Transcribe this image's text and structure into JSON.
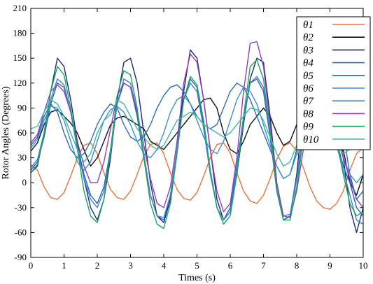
{
  "chart_data": {
    "type": "line",
    "title": "",
    "xlabel": "Times (s)",
    "ylabel": "Rotor Angles (Degrees)",
    "xlim": [
      0,
      10
    ],
    "ylim": [
      -90,
      210
    ],
    "x_ticks": [
      "0",
      "1",
      "2",
      "3",
      "4",
      "5",
      "6",
      "7",
      "8",
      "9",
      "10"
    ],
    "y_ticks": [
      "-90",
      "-60",
      "-30",
      "0",
      "30",
      "60",
      "90",
      "120",
      "150",
      "180",
      "210"
    ],
    "grid": false,
    "legend_position": "top-right",
    "series": [
      {
        "name": "θ1",
        "color": "#e8733a",
        "x": [
          0,
          0.2,
          0.4,
          0.6,
          0.8,
          1.0,
          1.2,
          1.4,
          1.6,
          1.8,
          2.0,
          2.2,
          2.4,
          2.6,
          2.8,
          3.0,
          3.2,
          3.4,
          3.6,
          3.8,
          4.0,
          4.2,
          4.4,
          4.6,
          4.8,
          5.0,
          5.2,
          5.4,
          5.6,
          5.8,
          6.0,
          6.2,
          6.4,
          6.6,
          6.8,
          7.0,
          7.2,
          7.4,
          7.6,
          7.8,
          8.0,
          8.2,
          8.4,
          8.6,
          8.8,
          9.0,
          9.2,
          9.4,
          9.6,
          9.8,
          10.0
        ],
        "y": [
          22,
          15,
          -5,
          -18,
          -20,
          -12,
          8,
          30,
          45,
          48,
          35,
          12,
          -8,
          -18,
          -20,
          -10,
          10,
          32,
          46,
          48,
          35,
          12,
          -8,
          -19,
          -21,
          -12,
          8,
          30,
          46,
          48,
          36,
          12,
          -10,
          -22,
          -25,
          -15,
          5,
          28,
          44,
          48,
          38,
          18,
          -5,
          -22,
          -30,
          -32,
          -25,
          -10,
          15,
          35,
          42
        ]
      },
      {
        "name": "θ2",
        "color": "#111111",
        "x": [
          0,
          0.2,
          0.4,
          0.6,
          0.8,
          1.0,
          1.2,
          1.4,
          1.6,
          1.8,
          2.0,
          2.2,
          2.4,
          2.6,
          2.8,
          3.0,
          3.2,
          3.4,
          3.6,
          3.8,
          4.0,
          4.2,
          4.4,
          4.6,
          4.8,
          5.0,
          5.2,
          5.4,
          5.6,
          5.8,
          6.0,
          6.2,
          6.4,
          6.6,
          6.8,
          7.0,
          7.2,
          7.4,
          7.6,
          7.8,
          8.0,
          8.2,
          8.4,
          8.6,
          8.8,
          9.0,
          9.2,
          9.4,
          9.6,
          9.8,
          10.0
        ],
        "y": [
          38,
          48,
          70,
          85,
          88,
          80,
          72,
          60,
          40,
          20,
          30,
          50,
          70,
          78,
          80,
          75,
          70,
          65,
          50,
          45,
          40,
          50,
          60,
          70,
          80,
          90,
          100,
          102,
          90,
          60,
          40,
          35,
          50,
          70,
          80,
          90,
          80,
          60,
          45,
          50,
          70,
          50,
          90,
          100,
          110,
          95,
          70,
          40,
          0,
          -15,
          10
        ]
      },
      {
        "name": "θ3",
        "color": "#1c2a7a",
        "x": [
          0,
          0.2,
          0.4,
          0.6,
          0.8,
          1.0,
          1.2,
          1.4,
          1.6,
          1.8,
          2.0,
          2.2,
          2.4,
          2.6,
          2.8,
          3.0,
          3.2,
          3.4,
          3.6,
          3.8,
          4.0,
          4.2,
          4.4,
          4.6,
          4.8,
          5.0,
          5.2,
          5.4,
          5.6,
          5.8,
          6.0,
          6.2,
          6.4,
          6.6,
          6.8,
          7.0,
          7.2,
          7.4,
          7.6,
          7.8,
          8.0,
          8.2,
          8.4,
          8.6,
          8.8,
          9.0,
          9.2,
          9.4,
          9.6,
          9.8,
          10.0
        ],
        "y": [
          12,
          20,
          60,
          110,
          150,
          140,
          100,
          50,
          5,
          -30,
          -45,
          -20,
          30,
          100,
          145,
          150,
          120,
          60,
          0,
          -40,
          -48,
          -20,
          40,
          110,
          160,
          150,
          100,
          40,
          -20,
          -45,
          -35,
          10,
          70,
          125,
          150,
          145,
          80,
          0,
          -45,
          -40,
          10,
          90,
          170,
          190,
          192,
          160,
          100,
          30,
          -30,
          -60,
          -30
        ]
      },
      {
        "name": "θ4",
        "color": "#2a6db5",
        "x": [
          0,
          0.2,
          0.4,
          0.6,
          0.8,
          1.0,
          1.2,
          1.4,
          1.6,
          1.8,
          2.0,
          2.2,
          2.4,
          2.6,
          2.8,
          3.0,
          3.2,
          3.4,
          3.6,
          3.8,
          4.0,
          4.2,
          4.4,
          4.6,
          4.8,
          5.0,
          5.2,
          5.4,
          5.6,
          5.8,
          6.0,
          6.2,
          6.4,
          6.6,
          6.8,
          7.0,
          7.2,
          7.4,
          7.6,
          7.8,
          8.0,
          8.2,
          8.4,
          8.6,
          8.8,
          9.0,
          9.2,
          9.4,
          9.6,
          9.8,
          10.0
        ],
        "y": [
          45,
          55,
          80,
          95,
          85,
          60,
          40,
          30,
          35,
          50,
          70,
          85,
          95,
          90,
          70,
          55,
          50,
          55,
          70,
          90,
          105,
          115,
          118,
          110,
          95,
          80,
          70,
          65,
          70,
          90,
          110,
          120,
          115,
          100,
          80,
          60,
          40,
          20,
          5,
          10,
          40,
          80,
          120,
          150,
          170,
          160,
          120,
          60,
          10,
          -20,
          -10
        ]
      },
      {
        "name": "θ5",
        "color": "#1f63c0",
        "x": [
          0,
          0.2,
          0.4,
          0.6,
          0.8,
          1.0,
          1.2,
          1.4,
          1.6,
          1.8,
          2.0,
          2.2,
          2.4,
          2.6,
          2.8,
          3.0,
          3.2,
          3.4,
          3.6,
          3.8,
          4.0,
          4.2,
          4.4,
          4.6,
          4.8,
          5.0,
          5.2,
          5.4,
          5.6,
          5.8,
          6.0,
          6.2,
          6.4,
          6.6,
          6.8,
          7.0,
          7.2,
          7.4,
          7.6,
          7.8,
          8.0,
          8.2,
          8.4,
          8.6,
          8.8,
          9.0,
          9.2,
          9.4,
          9.6,
          9.8,
          10.0
        ],
        "y": [
          15,
          25,
          55,
          95,
          120,
          115,
          85,
          45,
          10,
          -15,
          -25,
          -5,
          40,
          95,
          120,
          115,
          80,
          30,
          -15,
          -40,
          -45,
          -15,
          40,
          100,
          125,
          115,
          70,
          15,
          -30,
          -45,
          -30,
          20,
          80,
          120,
          125,
          110,
          55,
          -10,
          -45,
          -40,
          5,
          60,
          110,
          120,
          105,
          80,
          50,
          20,
          0,
          -30,
          -40
        ]
      },
      {
        "name": "θ6",
        "color": "#3a8fd8",
        "x": [
          0,
          0.2,
          0.4,
          0.6,
          0.8,
          1.0,
          1.2,
          1.4,
          1.6,
          1.8,
          2.0,
          2.2,
          2.4,
          2.6,
          2.8,
          3.0,
          3.2,
          3.4,
          3.6,
          3.8,
          4.0,
          4.2,
          4.4,
          4.6,
          4.8,
          5.0,
          5.2,
          5.4,
          5.6,
          5.8,
          6.0,
          6.2,
          6.4,
          6.6,
          6.8,
          7.0,
          7.2,
          7.4,
          7.6,
          7.8,
          8.0,
          8.2,
          8.4,
          8.6,
          8.8,
          9.0,
          9.2,
          9.4,
          9.6,
          9.8,
          10.0
        ],
        "y": [
          42,
          52,
          75,
          92,
          90,
          75,
          50,
          25,
          15,
          25,
          50,
          75,
          88,
          92,
          85,
          70,
          50,
          35,
          30,
          40,
          60,
          85,
          100,
          105,
          95,
          75,
          55,
          40,
          35,
          50,
          75,
          100,
          115,
          110,
          95,
          70,
          45,
          20,
          5,
          10,
          35,
          70,
          100,
          115,
          110,
          90,
          60,
          30,
          10,
          0,
          10
        ]
      },
      {
        "name": "θ7",
        "color": "#4a7fd0",
        "x": [
          0,
          0.2,
          0.4,
          0.6,
          0.8,
          1.0,
          1.2,
          1.4,
          1.6,
          1.8,
          2.0,
          2.2,
          2.4,
          2.6,
          2.8,
          3.0,
          3.2,
          3.4,
          3.6,
          3.8,
          4.0,
          4.2,
          4.4,
          4.6,
          4.8,
          5.0,
          5.2,
          5.4,
          5.6,
          5.8,
          6.0,
          6.2,
          6.4,
          6.6,
          6.8,
          7.0,
          7.2,
          7.4,
          7.6,
          7.8,
          8.0,
          8.2,
          8.4,
          8.6,
          8.8,
          9.0,
          9.2,
          9.4,
          9.6,
          9.8,
          10.0
        ],
        "y": [
          18,
          28,
          60,
          100,
          125,
          118,
          85,
          40,
          5,
          -20,
          -30,
          -10,
          35,
          95,
          125,
          120,
          85,
          35,
          -15,
          -40,
          -42,
          -15,
          40,
          100,
          120,
          110,
          65,
          10,
          -30,
          -45,
          -35,
          15,
          75,
          120,
          128,
          115,
          60,
          -5,
          -40,
          -38,
          5,
          55,
          95,
          110,
          100,
          75,
          45,
          15,
          -15,
          -45,
          -50
        ]
      },
      {
        "name": "θ8",
        "color": "#8e3fbf",
        "x": [
          0,
          0.2,
          0.4,
          0.6,
          0.8,
          1.0,
          1.2,
          1.4,
          1.6,
          1.8,
          2.0,
          2.2,
          2.4,
          2.6,
          2.8,
          3.0,
          3.2,
          3.4,
          3.6,
          3.8,
          4.0,
          4.2,
          4.4,
          4.6,
          4.8,
          5.0,
          5.2,
          5.4,
          5.6,
          5.8,
          6.0,
          6.2,
          6.4,
          6.6,
          6.8,
          7.0,
          7.2,
          7.4,
          7.6,
          7.8,
          8.0,
          8.2,
          8.4,
          8.6,
          8.8,
          9.0,
          9.2,
          9.4,
          9.6,
          9.8,
          10.0
        ],
        "y": [
          48,
          58,
          85,
          110,
          118,
          110,
          85,
          50,
          20,
          0,
          0,
          25,
          65,
          105,
          120,
          115,
          85,
          45,
          5,
          -25,
          -30,
          -5,
          50,
          120,
          155,
          145,
          100,
          40,
          -10,
          -35,
          -25,
          30,
          110,
          168,
          170,
          140,
          70,
          0,
          -40,
          -42,
          -10,
          40,
          80,
          100,
          95,
          80,
          55,
          30,
          5,
          -20,
          -30
        ]
      },
      {
        "name": "θ9",
        "color": "#18a85a",
        "x": [
          0,
          0.2,
          0.4,
          0.6,
          0.8,
          1.0,
          1.2,
          1.4,
          1.6,
          1.8,
          2.0,
          2.2,
          2.4,
          2.6,
          2.8,
          3.0,
          3.2,
          3.4,
          3.6,
          3.8,
          4.0,
          4.2,
          4.4,
          4.6,
          4.8,
          5.0,
          5.2,
          5.4,
          5.6,
          5.8,
          6.0,
          6.2,
          6.4,
          6.6,
          6.8,
          7.0,
          7.2,
          7.4,
          7.6,
          7.8,
          8.0,
          8.2,
          8.4,
          8.6,
          8.8,
          9.0,
          9.2,
          9.4,
          9.6,
          9.8,
          10.0
        ],
        "y": [
          12,
          22,
          60,
          110,
          140,
          130,
          90,
          40,
          -10,
          -40,
          -48,
          -20,
          40,
          105,
          135,
          130,
          90,
          30,
          -25,
          -50,
          -55,
          -25,
          35,
          100,
          128,
          118,
          75,
          15,
          -30,
          -50,
          -40,
          10,
          80,
          140,
          148,
          125,
          60,
          -10,
          -45,
          -45,
          -5,
          55,
          105,
          120,
          110,
          85,
          50,
          10,
          -25,
          -40,
          -35
        ]
      },
      {
        "name": "θ10",
        "color": "#40b8a0",
        "x": [
          0,
          0.2,
          0.4,
          0.6,
          0.8,
          1.0,
          1.2,
          1.4,
          1.6,
          1.8,
          2.0,
          2.2,
          2.4,
          2.6,
          2.8,
          3.0,
          3.2,
          3.4,
          3.6,
          3.8,
          4.0,
          4.2,
          4.4,
          4.6,
          4.8,
          5.0,
          5.2,
          5.4,
          5.6,
          5.8,
          6.0,
          6.2,
          6.4,
          6.6,
          6.8,
          7.0,
          7.2,
          7.4,
          7.6,
          7.8,
          8.0,
          8.2,
          8.4,
          8.6,
          8.8,
          9.0,
          9.2,
          9.4,
          9.6,
          9.8,
          10.0
        ],
        "y": [
          65,
          68,
          85,
          100,
          95,
          80,
          60,
          40,
          25,
          35,
          60,
          75,
          82,
          100,
          95,
          80,
          65,
          55,
          45,
          40,
          45,
          60,
          75,
          80,
          85,
          80,
          70,
          65,
          60,
          55,
          60,
          70,
          80,
          90,
          88,
          75,
          55,
          35,
          20,
          25,
          45,
          70,
          90,
          95,
          88,
          70,
          50,
          35,
          40,
          55,
          60
        ]
      }
    ]
  }
}
